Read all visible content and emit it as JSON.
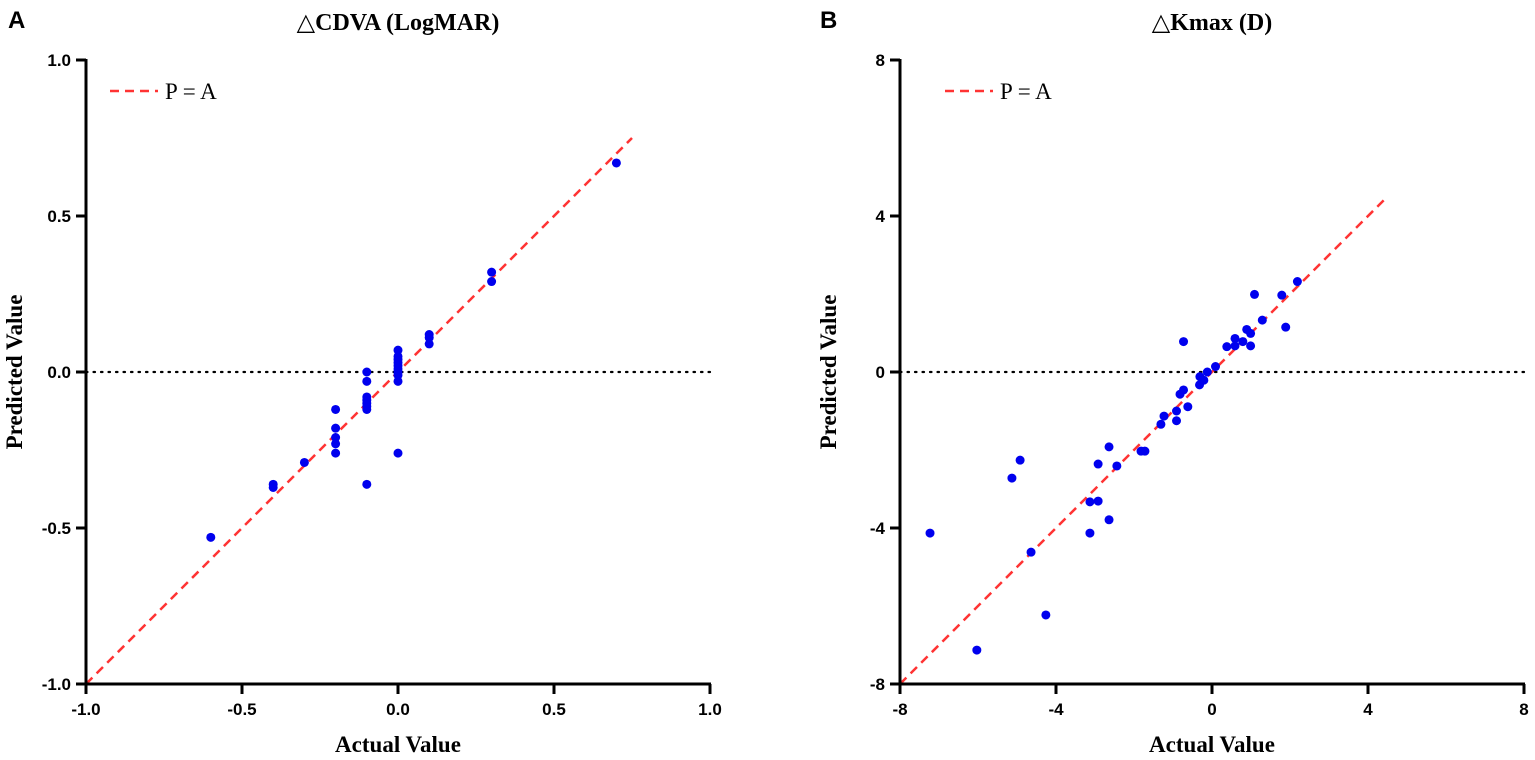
{
  "chart_data": [
    {
      "type": "scatter",
      "panel_label": "A",
      "title": "△CDVA (LogMAR)",
      "xlabel": "Actual Value",
      "ylabel": "Predicted Value",
      "xlim": [
        -1.0,
        1.0
      ],
      "ylim": [
        -1.0,
        1.0
      ],
      "xticks": [
        "-1.0",
        "-0.5",
        "0.0",
        "0.5",
        "1.0"
      ],
      "yticks": [
        "-1.0",
        "-0.5",
        "0.0",
        "0.5",
        "1.0"
      ],
      "xtick_values": [
        -1.0,
        -0.5,
        0.0,
        0.5,
        1.0
      ],
      "ytick_values": [
        -1.0,
        -0.5,
        0.0,
        0.5,
        1.0
      ],
      "legend": {
        "label": "P = A",
        "placement": "top-left"
      },
      "reference_line": {
        "label": "P = A",
        "from": [
          -1.0,
          -1.0
        ],
        "to": [
          0.75,
          0.75
        ],
        "color": "#ff3333"
      },
      "zero_line_y": 0,
      "point_color": "#0000ee",
      "points": [
        [
          -0.6,
          -0.53
        ],
        [
          -0.4,
          -0.36
        ],
        [
          -0.4,
          -0.37
        ],
        [
          -0.3,
          -0.29
        ],
        [
          -0.2,
          -0.12
        ],
        [
          -0.2,
          -0.18
        ],
        [
          -0.2,
          -0.21
        ],
        [
          -0.2,
          -0.23
        ],
        [
          -0.2,
          -0.26
        ],
        [
          -0.1,
          0.0
        ],
        [
          -0.1,
          -0.03
        ],
        [
          -0.1,
          -0.08
        ],
        [
          -0.1,
          -0.09
        ],
        [
          -0.1,
          -0.1
        ],
        [
          -0.1,
          -0.11
        ],
        [
          -0.1,
          -0.12
        ],
        [
          -0.1,
          -0.36
        ],
        [
          0.0,
          0.07
        ],
        [
          0.0,
          0.05
        ],
        [
          0.0,
          0.04
        ],
        [
          0.0,
          0.03
        ],
        [
          0.0,
          0.02
        ],
        [
          0.0,
          0.01
        ],
        [
          0.0,
          0.0
        ],
        [
          0.0,
          -0.01
        ],
        [
          0.0,
          -0.03
        ],
        [
          0.0,
          -0.26
        ],
        [
          0.1,
          0.12
        ],
        [
          0.1,
          0.11
        ],
        [
          0.1,
          0.09
        ],
        [
          0.3,
          0.32
        ],
        [
          0.3,
          0.29
        ],
        [
          0.7,
          0.67
        ]
      ]
    },
    {
      "type": "scatter",
      "panel_label": "B",
      "title": "△Kmax (D)",
      "xlabel": "Actual Value",
      "ylabel": "Predicted Value",
      "xlim": [
        -8,
        8
      ],
      "ylim": [
        -8,
        8
      ],
      "xticks": [
        "-8",
        "-4",
        "0",
        "4",
        "8"
      ],
      "yticks": [
        "-8",
        "-4",
        "0",
        "4",
        "8"
      ],
      "xtick_values": [
        -8,
        -4,
        0,
        4,
        8
      ],
      "ytick_values": [
        -8,
        -4,
        0,
        4,
        8
      ],
      "legend": {
        "label": "P = A",
        "placement": "top-left"
      },
      "reference_line": {
        "label": "P = A",
        "from": [
          -8,
          -8
        ],
        "to": [
          4.5,
          4.5
        ],
        "color": "#ff3333"
      },
      "zero_line_y": 0,
      "point_color": "#0000ee",
      "points": [
        [
          -7.23,
          -4.13
        ],
        [
          -6.03,
          -7.13
        ],
        [
          -5.13,
          -2.72
        ],
        [
          -4.92,
          -2.26
        ],
        [
          -4.64,
          -4.62
        ],
        [
          -4.26,
          -6.23
        ],
        [
          -3.13,
          -3.33
        ],
        [
          -3.13,
          -4.13
        ],
        [
          -2.92,
          -2.36
        ],
        [
          -2.92,
          -3.31
        ],
        [
          -2.64,
          -1.92
        ],
        [
          -2.64,
          -3.79
        ],
        [
          -2.44,
          -2.41
        ],
        [
          -1.82,
          -2.03
        ],
        [
          -1.72,
          -2.03
        ],
        [
          -1.31,
          -1.34
        ],
        [
          -1.23,
          -1.13
        ],
        [
          -0.91,
          -1.0
        ],
        [
          -0.91,
          -1.25
        ],
        [
          -0.82,
          -0.57
        ],
        [
          -0.73,
          -0.46
        ],
        [
          -0.62,
          -0.89
        ],
        [
          -0.73,
          0.78
        ],
        [
          -0.32,
          -0.33
        ],
        [
          -0.31,
          -0.12
        ],
        [
          -0.21,
          -0.21
        ],
        [
          -0.12,
          0.0
        ],
        [
          0.09,
          0.14
        ],
        [
          0.38,
          0.65
        ],
        [
          0.59,
          0.86
        ],
        [
          0.59,
          0.67
        ],
        [
          0.79,
          0.78
        ],
        [
          0.89,
          1.09
        ],
        [
          0.99,
          0.99
        ],
        [
          0.99,
          0.67
        ],
        [
          1.29,
          1.33
        ],
        [
          1.09,
          1.99
        ],
        [
          1.79,
          1.97
        ],
        [
          1.89,
          1.15
        ],
        [
          2.19,
          2.32
        ]
      ]
    }
  ]
}
